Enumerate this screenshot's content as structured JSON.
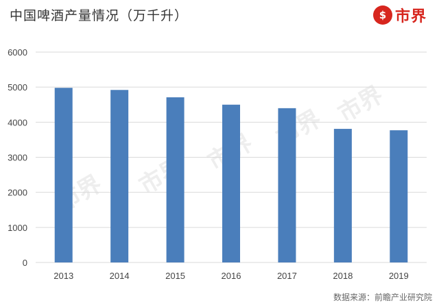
{
  "header": {
    "title": "中国啤酒产量情况（万千升）",
    "brand_icon_glyph": "$",
    "brand_text": "市界"
  },
  "watermark_text": "市界",
  "source": "数据来源：前瞻产业研究院",
  "colors": {
    "bar": "#4a7ebb",
    "brand": "#d7261e",
    "grid": "#d9d9d9"
  },
  "chart_data": {
    "type": "bar",
    "title": "中国啤酒产量情况（万千升）",
    "xlabel": "",
    "ylabel": "",
    "categories": [
      "2013",
      "2014",
      "2015",
      "2016",
      "2017",
      "2018",
      "2019"
    ],
    "values": [
      4980,
      4920,
      4710,
      4500,
      4400,
      3810,
      3770
    ],
    "ylim": [
      0,
      6000
    ],
    "yticks": [
      0,
      1000,
      2000,
      3000,
      4000,
      5000,
      6000
    ],
    "grid": true,
    "legend": "none"
  }
}
